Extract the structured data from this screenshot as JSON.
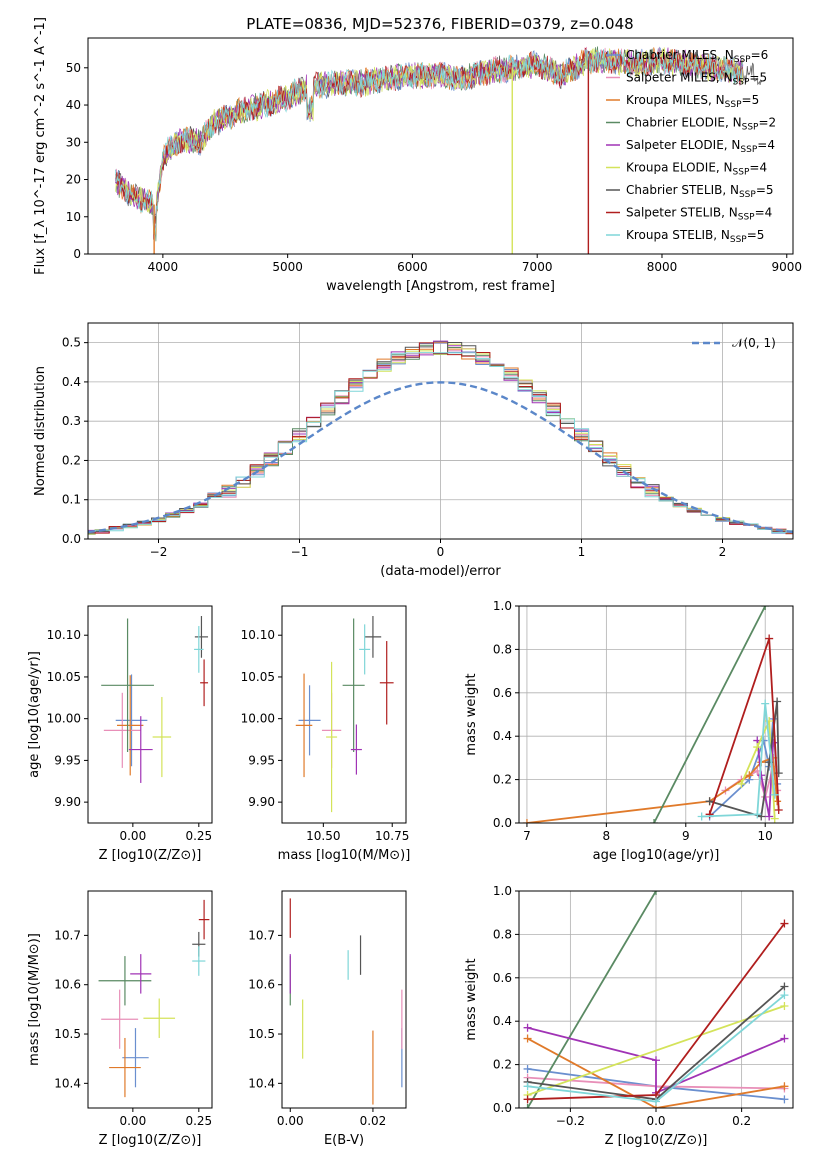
{
  "figure_title": "PLATE=0836, MJD=52376, FIBERID=0379, z=0.048",
  "models": [
    {
      "name": "Chabrier MILES",
      "nssp": "6",
      "color": "#6a8fcf"
    },
    {
      "name": "Salpeter MILES",
      "nssp": "5",
      "color": "#e88fb8"
    },
    {
      "name": "Kroupa MILES",
      "nssp": "5",
      "color": "#e07a2a"
    },
    {
      "name": "Chabrier ELODIE",
      "nssp": "2",
      "color": "#5a8a63"
    },
    {
      "name": "Salpeter ELODIE",
      "nssp": "4",
      "color": "#a033b5"
    },
    {
      "name": "Kroupa ELODIE",
      "nssp": "4",
      "color": "#d4e35a"
    },
    {
      "name": "Chabrier STELIB",
      "nssp": "5",
      "color": "#555555"
    },
    {
      "name": "Salpeter STELIB",
      "nssp": "4",
      "color": "#b01e1e"
    },
    {
      "name": "Kroupa STELIB",
      "nssp": "5",
      "color": "#7fd6d8"
    }
  ],
  "chart_data": [
    {
      "id": "spectrum",
      "type": "line",
      "xlabel": "wavelength [Angstrom, rest frame]",
      "ylabel": "Flux [f_λ 10^-17 erg cm^-2 s^-1 A^-1]",
      "xlim": [
        3400,
        9050
      ],
      "ylim": [
        0,
        58
      ],
      "xticks": [
        4000,
        5000,
        6000,
        7000,
        8000,
        9000
      ],
      "yticks": [
        0,
        10,
        20,
        30,
        40,
        50
      ],
      "continuum": [
        [
          3620,
          20
        ],
        [
          3700,
          17
        ],
        [
          3800,
          15
        ],
        [
          3880,
          14
        ],
        [
          3950,
          13
        ],
        [
          4000,
          26
        ],
        [
          4100,
          30
        ],
        [
          4200,
          31
        ],
        [
          4300,
          30
        ],
        [
          4400,
          35
        ],
        [
          4600,
          38
        ],
        [
          4800,
          40
        ],
        [
          5000,
          42
        ],
        [
          5100,
          44
        ],
        [
          5200,
          45
        ],
        [
          5400,
          46
        ],
        [
          5600,
          46
        ],
        [
          5800,
          47
        ],
        [
          6000,
          48
        ],
        [
          6200,
          48
        ],
        [
          6400,
          47
        ],
        [
          6600,
          49
        ],
        [
          6800,
          50
        ],
        [
          7000,
          51
        ],
        [
          7200,
          48
        ],
        [
          7400,
          52
        ],
        [
          7600,
          52
        ],
        [
          7800,
          51
        ],
        [
          8000,
          52
        ],
        [
          8200,
          51
        ],
        [
          8400,
          50
        ],
        [
          8600,
          49
        ],
        [
          8800,
          48
        ]
      ],
      "spikes": [
        {
          "x": 3930,
          "y": 0,
          "series": "Kroupa MILES"
        },
        {
          "x": 6800,
          "y": 0,
          "series": "Kroupa ELODIE"
        },
        {
          "x": 7410,
          "y": 0,
          "series": "Salpeter STELIB"
        }
      ]
    },
    {
      "id": "residual_histogram",
      "type": "histogram",
      "xlabel": "(data-model)/error",
      "ylabel": "Normed distribution",
      "xlim": [
        -2.5,
        2.5
      ],
      "ylim": [
        0,
        0.55
      ],
      "xticks": [
        -2,
        -1,
        0,
        1,
        2
      ],
      "yticks": [
        0.0,
        0.1,
        0.2,
        0.3,
        0.4,
        0.5
      ],
      "bin_width": 0.1,
      "reference_curve": {
        "name": "𝒩(0, 1)",
        "mu": 0,
        "sigma": 1,
        "color": "#5b87c9"
      },
      "grid": true
    },
    {
      "id": "age_vs_Z",
      "type": "scatter",
      "xlabel": "Z [log10(Z/Z⊙)]",
      "ylabel": "age [log10(age/yr)]",
      "xlim": [
        -0.17,
        0.3
      ],
      "ylim": [
        9.875,
        10.135
      ],
      "xticks": [
        0.0,
        0.25
      ],
      "yticks": [
        9.9,
        9.95,
        10.0,
        10.05,
        10.1
      ],
      "points": [
        {
          "x": -0.005,
          "y": 9.998,
          "xerr": 0.06,
          "yerr": 0.055
        },
        {
          "x": -0.04,
          "y": 9.986,
          "xerr": 0.07,
          "yerr": 0.045
        },
        {
          "x": -0.01,
          "y": 9.992,
          "xerr": 0.05,
          "yerr": 0.06
        },
        {
          "x": -0.02,
          "y": 10.04,
          "xerr": 0.1,
          "yerr": 0.08
        },
        {
          "x": 0.03,
          "y": 9.963,
          "xerr": 0.045,
          "yerr": 0.04
        },
        {
          "x": 0.11,
          "y": 9.978,
          "xerr": 0.035,
          "yerr": 0.048
        },
        {
          "x": 0.26,
          "y": 10.098,
          "xerr": 0.025,
          "yerr": 0.025
        },
        {
          "x": 0.27,
          "y": 10.043,
          "xerr": 0.015,
          "yerr": 0.028
        },
        {
          "x": 0.25,
          "y": 10.083,
          "xerr": 0.018,
          "yerr": 0.028
        }
      ]
    },
    {
      "id": "age_vs_mass",
      "type": "scatter",
      "xlabel": "mass [log10(M/M⊙)]",
      "ylabel": "",
      "xlim": [
        10.35,
        10.8
      ],
      "ylim": [
        9.875,
        10.135
      ],
      "xticks": [
        10.5,
        10.75
      ],
      "yticks": [
        9.9,
        9.95,
        10.0,
        10.05,
        10.1
      ],
      "points": [
        {
          "x": 10.45,
          "y": 9.998,
          "xerr": 0.04,
          "yerr": 0.042
        },
        {
          "x": 10.53,
          "y": 9.986,
          "xerr": 0.035,
          "yerr": 0.045
        },
        {
          "x": 10.43,
          "y": 9.992,
          "xerr": 0.03,
          "yerr": 0.062
        },
        {
          "x": 10.61,
          "y": 10.04,
          "xerr": 0.04,
          "yerr": 0.08
        },
        {
          "x": 10.62,
          "y": 9.963,
          "xerr": 0.02,
          "yerr": 0.03
        },
        {
          "x": 10.53,
          "y": 9.978,
          "xerr": 0.02,
          "yerr": 0.09
        },
        {
          "x": 10.68,
          "y": 10.098,
          "xerr": 0.03,
          "yerr": 0.025
        },
        {
          "x": 10.73,
          "y": 10.043,
          "xerr": 0.025,
          "yerr": 0.05
        },
        {
          "x": 10.65,
          "y": 10.083,
          "xerr": 0.02,
          "yerr": 0.03
        }
      ]
    },
    {
      "id": "mass_weight_vs_age",
      "type": "line",
      "xlabel": "age [log10(age/yr)]",
      "ylabel": "mass weight",
      "xlim": [
        6.9,
        10.35
      ],
      "ylim": [
        0,
        1.0
      ],
      "xticks": [
        7,
        8,
        9,
        10
      ],
      "yticks": [
        0.0,
        0.2,
        0.4,
        0.6,
        0.8,
        1.0
      ],
      "grid": true,
      "series": [
        {
          "x": [
            9.3,
            9.8,
            9.98,
            10.05,
            10.1,
            10.15
          ],
          "y": [
            0.03,
            0.2,
            0.38,
            0.26,
            0.48,
            0.18
          ]
        },
        {
          "x": [
            9.5,
            9.7,
            9.9,
            10.0,
            10.1,
            10.15
          ],
          "y": [
            0.15,
            0.2,
            0.24,
            0.12,
            0.26,
            0.15
          ]
        },
        {
          "x": [
            7.0,
            9.3,
            9.8,
            9.95,
            10.1,
            10.15
          ],
          "y": [
            0.0,
            0.1,
            0.22,
            0.28,
            0.3,
            0.1
          ]
        },
        {
          "x": [
            8.6,
            10.0
          ],
          "y": [
            0.0,
            1.0
          ]
        },
        {
          "x": [
            9.9,
            9.95,
            10.05,
            10.1
          ],
          "y": [
            0.38,
            0.22,
            0.03,
            0.37
          ]
        },
        {
          "x": [
            9.7,
            9.9,
            10.05,
            10.12
          ],
          "y": [
            0.18,
            0.35,
            0.47,
            0.02
          ]
        },
        {
          "x": [
            9.3,
            9.95,
            10.05,
            10.15,
            10.17
          ],
          "y": [
            0.1,
            0.03,
            0.28,
            0.56,
            0.23
          ]
        },
        {
          "x": [
            9.3,
            10.05,
            10.17
          ],
          "y": [
            0.04,
            0.85,
            0.06
          ]
        },
        {
          "x": [
            9.2,
            9.9,
            10.0,
            10.12
          ],
          "y": [
            0.03,
            0.04,
            0.55,
            0.13
          ]
        }
      ]
    },
    {
      "id": "mass_vs_Z",
      "type": "scatter",
      "xlabel": "Z [log10(Z/Z⊙)]",
      "ylabel": "mass [log10(M/M⊙)]",
      "xlim": [
        -0.17,
        0.3
      ],
      "ylim": [
        10.35,
        10.79
      ],
      "xticks": [
        0.0,
        0.25
      ],
      "yticks": [
        10.4,
        10.5,
        10.6,
        10.7
      ],
      "points": [
        {
          "x": 0.01,
          "y": 10.452,
          "xerr": 0.05,
          "yerr": 0.06
        },
        {
          "x": -0.05,
          "y": 10.53,
          "xerr": 0.07,
          "yerr": 0.06
        },
        {
          "x": -0.03,
          "y": 10.432,
          "xerr": 0.06,
          "yerr": 0.06
        },
        {
          "x": -0.03,
          "y": 10.608,
          "xerr": 0.1,
          "yerr": 0.05
        },
        {
          "x": 0.03,
          "y": 10.622,
          "xerr": 0.04,
          "yerr": 0.04
        },
        {
          "x": 0.1,
          "y": 10.532,
          "xerr": 0.06,
          "yerr": 0.04
        },
        {
          "x": 0.25,
          "y": 10.682,
          "xerr": 0.025,
          "yerr": 0.025
        },
        {
          "x": 0.27,
          "y": 10.732,
          "xerr": 0.02,
          "yerr": 0.04
        },
        {
          "x": 0.25,
          "y": 10.648,
          "xerr": 0.025,
          "yerr": 0.03
        }
      ]
    },
    {
      "id": "mass_vs_ebv",
      "type": "scatter",
      "xlabel": "E(B-V)",
      "ylabel": "",
      "xlim": [
        -0.002,
        0.028
      ],
      "ylim": [
        10.35,
        10.79
      ],
      "xticks": [
        0.0,
        0.02
      ],
      "yticks": [
        10.4,
        10.5,
        10.6,
        10.7
      ],
      "points": [
        {
          "x": 0.027,
          "y": 10.452,
          "xerr": 0,
          "yerr": 0.06
        },
        {
          "x": 0.027,
          "y": 10.53,
          "xerr": 0,
          "yerr": 0.06
        },
        {
          "x": 0.02,
          "y": 10.432,
          "xerr": 0,
          "yerr": 0.075
        },
        {
          "x": 0.0,
          "y": 10.608,
          "xerr": 0,
          "yerr": 0.05
        },
        {
          "x": 0.0,
          "y": 10.622,
          "xerr": 0,
          "yerr": 0.04
        },
        {
          "x": 0.003,
          "y": 10.51,
          "xerr": 0,
          "yerr": 0.06
        },
        {
          "x": 0.017,
          "y": 10.66,
          "xerr": 0,
          "yerr": 0.04
        },
        {
          "x": 0.0,
          "y": 10.735,
          "xerr": 0,
          "yerr": 0.04
        },
        {
          "x": 0.014,
          "y": 10.64,
          "xerr": 0,
          "yerr": 0.03
        }
      ]
    },
    {
      "id": "mass_weight_vs_Z",
      "type": "line",
      "xlabel": "Z [log10(Z/Z⊙)]",
      "ylabel": "mass weight",
      "xlim": [
        -0.32,
        0.32
      ],
      "ylim": [
        0,
        1.0
      ],
      "xticks": [
        -0.2,
        0.0,
        0.2
      ],
      "yticks": [
        0.0,
        0.2,
        0.4,
        0.6,
        0.8,
        1.0
      ],
      "grid": true,
      "series": [
        {
          "x": [
            -0.3,
            0.0,
            0.3
          ],
          "y": [
            0.18,
            0.1,
            0.04
          ]
        },
        {
          "x": [
            -0.3,
            0.0,
            0.3
          ],
          "y": [
            0.14,
            0.1,
            0.09
          ]
        },
        {
          "x": [
            -0.3,
            0.0,
            0.3
          ],
          "y": [
            0.32,
            0.0,
            0.1
          ]
        },
        {
          "x": [
            -0.3,
            0.0
          ],
          "y": [
            0.0,
            1.0
          ]
        },
        {
          "x": [
            -0.3,
            0.0,
            0.0,
            0.3
          ],
          "y": [
            0.37,
            0.22,
            0.07,
            0.32
          ]
        },
        {
          "x": [
            -0.3,
            0.3
          ],
          "y": [
            0.06,
            0.47
          ]
        },
        {
          "x": [
            -0.3,
            0.0,
            0.3
          ],
          "y": [
            0.12,
            0.04,
            0.56
          ]
        },
        {
          "x": [
            -0.3,
            0.0,
            0.3
          ],
          "y": [
            0.04,
            0.06,
            0.85
          ]
        },
        {
          "x": [
            -0.3,
            0.0,
            0.3
          ],
          "y": [
            0.1,
            0.03,
            0.52
          ]
        }
      ]
    }
  ]
}
